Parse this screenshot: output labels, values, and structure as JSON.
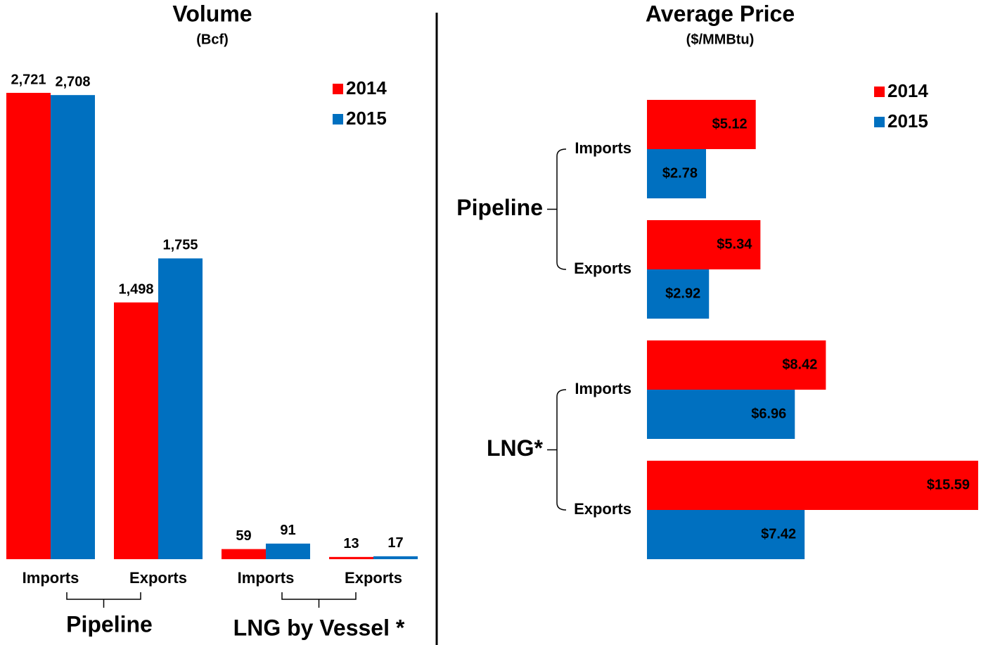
{
  "chart_data": [
    {
      "type": "bar",
      "title": "Volume",
      "subtitle": "(Bcf)",
      "categories": [
        "Imports",
        "Exports",
        "Imports",
        "Exports"
      ],
      "groups": [
        "Pipeline",
        "LNG by Vessel *"
      ],
      "series": [
        {
          "name": "2014",
          "color": "#ff0000",
          "values": [
            2721,
            1498,
            59,
            13
          ],
          "value_labels": [
            "2,721",
            "1,498",
            "59",
            "13"
          ]
        },
        {
          "name": "2015",
          "color": "#0070c0",
          "values": [
            2708,
            1755,
            91,
            17
          ],
          "value_labels": [
            "2,708",
            "1,755",
            "91",
            "17"
          ]
        }
      ]
    },
    {
      "type": "barh",
      "title": "Average Price",
      "subtitle": "($/MMBtu)",
      "categories": [
        "Imports",
        "Exports",
        "Imports",
        "Exports"
      ],
      "groups": [
        "Pipeline",
        "LNG*"
      ],
      "series": [
        {
          "name": "2014",
          "color": "#ff0000",
          "values": [
            5.12,
            5.34,
            8.42,
            15.59
          ],
          "value_labels": [
            "$5.12",
            "$5.34",
            "$8.42",
            "$15.59"
          ]
        },
        {
          "name": "2015",
          "color": "#0070c0",
          "values": [
            2.78,
            2.92,
            6.96,
            7.42
          ],
          "value_labels": [
            "$2.78",
            "$2.92",
            "$6.96",
            "$7.42"
          ]
        }
      ]
    }
  ]
}
